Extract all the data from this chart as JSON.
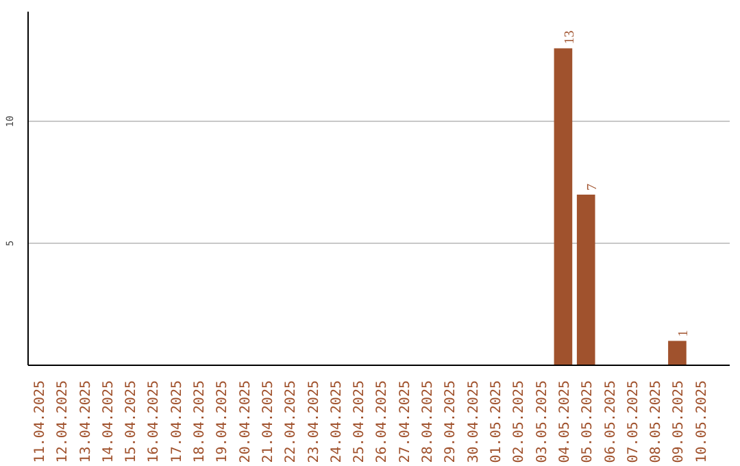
{
  "chart_data": {
    "type": "bar",
    "categories": [
      "11.04.2025",
      "12.04.2025",
      "13.04.2025",
      "14.04.2025",
      "15.04.2025",
      "16.04.2025",
      "17.04.2025",
      "18.04.2025",
      "19.04.2025",
      "20.04.2025",
      "21.04.2025",
      "22.04.2025",
      "23.04.2025",
      "24.04.2025",
      "25.04.2025",
      "26.04.2025",
      "27.04.2025",
      "28.04.2025",
      "29.04.2025",
      "30.04.2025",
      "01.05.2025",
      "02.05.2025",
      "03.05.2025",
      "04.05.2025",
      "05.05.2025",
      "06.05.2025",
      "07.05.2025",
      "08.05.2025",
      "09.05.2025",
      "10.05.2025"
    ],
    "values": [
      0,
      0,
      0,
      0,
      0,
      0,
      0,
      0,
      0,
      0,
      0,
      0,
      0,
      0,
      0,
      0,
      0,
      0,
      0,
      0,
      0,
      0,
      0,
      13,
      7,
      0,
      0,
      0,
      1,
      0
    ],
    "value_labels": [
      null,
      null,
      null,
      null,
      null,
      null,
      null,
      null,
      null,
      null,
      null,
      null,
      null,
      null,
      null,
      null,
      null,
      null,
      null,
      null,
      null,
      null,
      null,
      "13",
      "7",
      null,
      null,
      null,
      "1",
      null
    ],
    "color": "#a0522d",
    "ylim": [
      0,
      14.5
    ],
    "yticks": [
      5,
      10
    ],
    "grid": "y"
  }
}
